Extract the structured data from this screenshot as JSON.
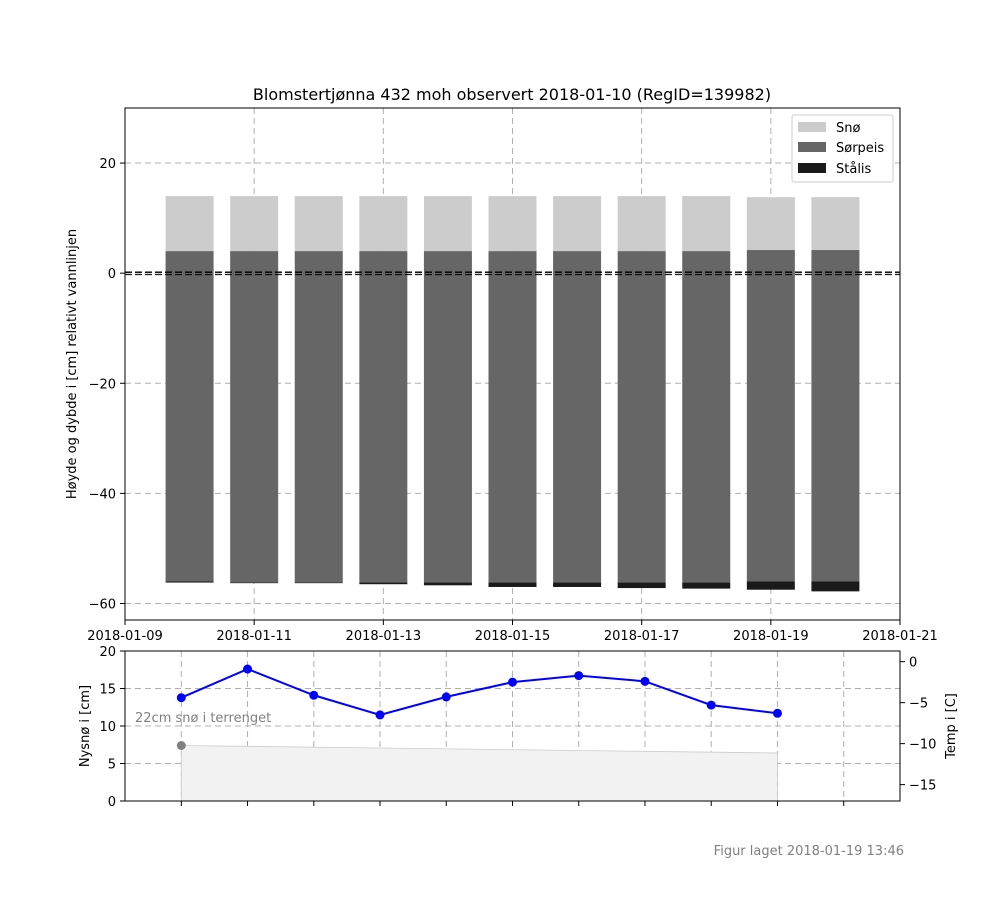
{
  "chart_data": [
    {
      "type": "bar",
      "stacked": true,
      "title": "Blomstertjønna 432 moh observert 2018-01-10 (RegID=139982)",
      "ylabel": "Høyde og dybde i [cm] relativt vannlinjen",
      "xlabel": "",
      "x_ticks": [
        "2018-01-09",
        "2018-01-11",
        "2018-01-13",
        "2018-01-15",
        "2018-01-17",
        "2018-01-19",
        "2018-01-21"
      ],
      "y_ticks": [
        "20",
        "0",
        "−20",
        "−40",
        "−60"
      ],
      "xlim": [
        "2018-01-09",
        "2018-01-21"
      ],
      "ylim": [
        -63,
        30
      ],
      "grid": true,
      "legend_position": "top-right",
      "waterline": 0,
      "colors": {
        "sno": "#cccccc",
        "sorpeis": "#666666",
        "stalis": "#1a1a1a"
      },
      "categories": [
        "2018-01-10",
        "2018-01-11",
        "2018-01-12",
        "2018-01-13",
        "2018-01-14",
        "2018-01-15",
        "2018-01-16",
        "2018-01-17",
        "2018-01-18",
        "2018-01-19",
        "2018-01-20"
      ],
      "series": [
        {
          "name": "Snø",
          "layer_top": [
            14,
            14,
            14,
            14,
            14,
            14,
            14,
            14,
            14,
            13.8,
            13.8
          ],
          "layer_bottom": [
            4,
            4,
            4,
            4,
            4,
            4,
            4,
            4,
            4,
            4.2,
            4.2
          ]
        },
        {
          "name": "Sørpeis",
          "layer_top": [
            4,
            4,
            4,
            4,
            4,
            4,
            4,
            4,
            4,
            4.2,
            4.2
          ],
          "layer_bottom": [
            -56,
            -56.2,
            -56.2,
            -56.2,
            -56.2,
            -56.2,
            -56.2,
            -56.2,
            -56.2,
            -56,
            -56
          ]
        },
        {
          "name": "Stålis",
          "layer_top": [
            -56,
            -56.2,
            -56.2,
            -56.2,
            -56.2,
            -56.2,
            -56.2,
            -56.2,
            -56.2,
            -56,
            -56
          ],
          "layer_bottom": [
            -56.2,
            -56.3,
            -56.3,
            -56.5,
            -56.7,
            -57,
            -57,
            -57.2,
            -57.3,
            -57.5,
            -57.8
          ]
        }
      ]
    },
    {
      "type": "line",
      "ylabel": "Nysnø i [cm]",
      "y2label": "Temp i [C]",
      "y_ticks": [
        "20",
        "15",
        "10",
        "5",
        "0"
      ],
      "y2_ticks": [
        "0",
        "−5",
        "−10",
        "−15"
      ],
      "ylim": [
        0,
        20
      ],
      "y2lim": [
        -17,
        1.3
      ],
      "grid": true,
      "annotation": "22cm snø i terrenget",
      "x": [
        "2018-01-10",
        "2018-01-11",
        "2018-01-12",
        "2018-01-13",
        "2018-01-14",
        "2018-01-15",
        "2018-01-16",
        "2018-01-17",
        "2018-01-18",
        "2018-01-19",
        "2018-01-20"
      ],
      "temperature": [
        -4.4,
        -0.9,
        -4.1,
        -6.5,
        -4.3,
        -2.5,
        -1.7,
        -2.4,
        -5.3,
        -6.3
      ],
      "temperature_color": "#0000ff",
      "snow_depth_area": {
        "x": [
          "2018-01-10",
          "2018-01-19"
        ],
        "values": [
          7.4,
          6.4
        ]
      },
      "snow_depth_marker": {
        "x": "2018-01-10",
        "value": 7.4,
        "color": "#808080"
      }
    }
  ],
  "footer": "Figur laget 2018-01-19 13:46"
}
